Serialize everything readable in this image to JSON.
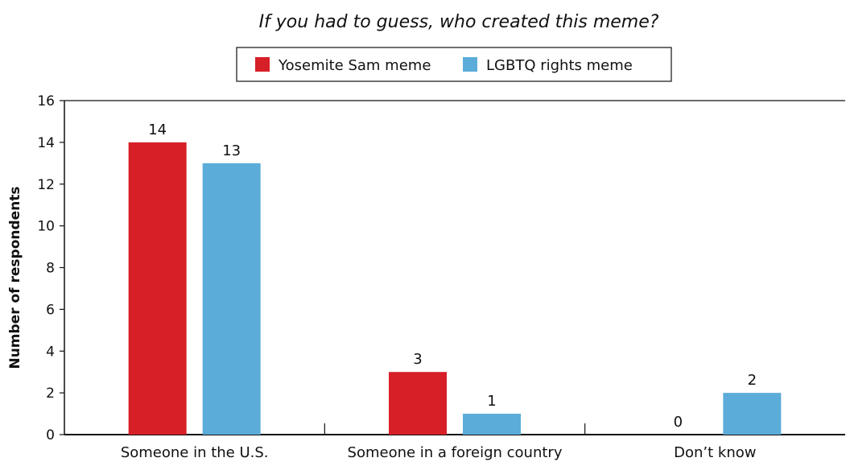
{
  "chart_data": {
    "type": "bar",
    "title": "If you had to guess, who created this meme?",
    "xlabel": "",
    "ylabel": "Number of respondents",
    "ylim": [
      0,
      16
    ],
    "yticks": [
      0,
      2,
      4,
      6,
      8,
      10,
      12,
      14,
      16
    ],
    "grid": false,
    "legend": "top-center",
    "categories": [
      "Someone in the U.S.",
      "Someone in a foreign country",
      "Don’t know"
    ],
    "series": [
      {
        "name": "Yosemite Sam meme",
        "color": "#d71f27",
        "values": [
          14,
          3,
          0
        ]
      },
      {
        "name": "LGBTQ rights meme",
        "color": "#5bacd9",
        "values": [
          13,
          1,
          2
        ]
      }
    ]
  }
}
